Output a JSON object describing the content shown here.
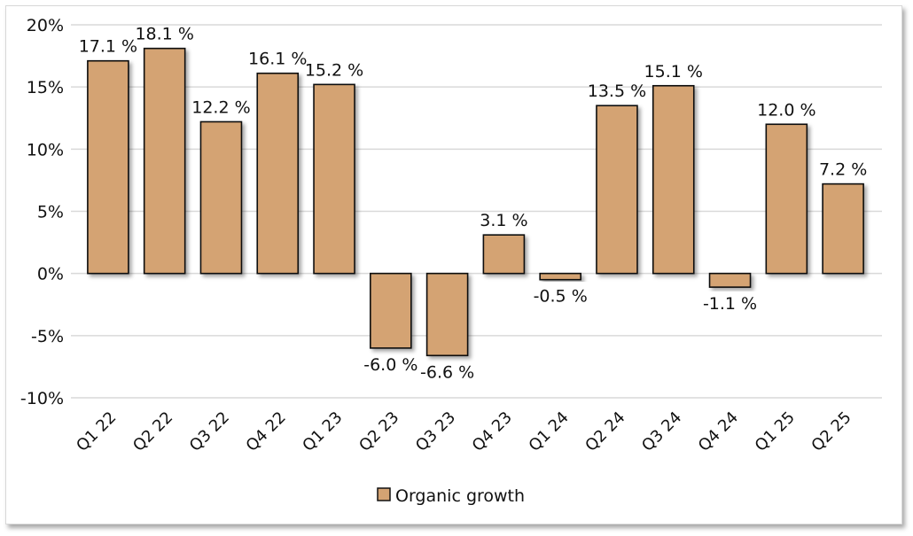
{
  "chart_data": {
    "type": "bar",
    "title": "",
    "xlabel": "",
    "ylabel": "",
    "categories": [
      "Q1 22",
      "Q2 22",
      "Q3 22",
      "Q4 22",
      "Q1 23",
      "Q2 23",
      "Q3 23",
      "Q4 23",
      "Q1 24",
      "Q2 24",
      "Q3 24",
      "Q4 24",
      "Q1 25",
      "Q2 25"
    ],
    "series": [
      {
        "name": "Organic growth",
        "color": "#D4A373",
        "values": [
          17.1,
          18.1,
          12.2,
          16.1,
          15.2,
          -6.0,
          -6.6,
          3.1,
          -0.5,
          13.5,
          15.1,
          -1.1,
          12.0,
          7.2
        ],
        "labels": [
          "17.1 %",
          "18.1 %",
          "12.2 %",
          "16.1 %",
          "15.2 %",
          "-6.0 %",
          "-6.6 %",
          "3.1 %",
          "-0.5 %",
          "13.5 %",
          "15.1 %",
          "-1.1 %",
          "12.0 %",
          "7.2 %"
        ]
      }
    ],
    "ylim": [
      -10,
      20
    ],
    "yticks": [
      20,
      15,
      10,
      5,
      0,
      -5,
      -10
    ],
    "ytick_labels": [
      "20%",
      "15%",
      "10%",
      "5%",
      "0%",
      "-5%",
      "-10%"
    ],
    "grid": true,
    "legend": "bottom-center"
  }
}
